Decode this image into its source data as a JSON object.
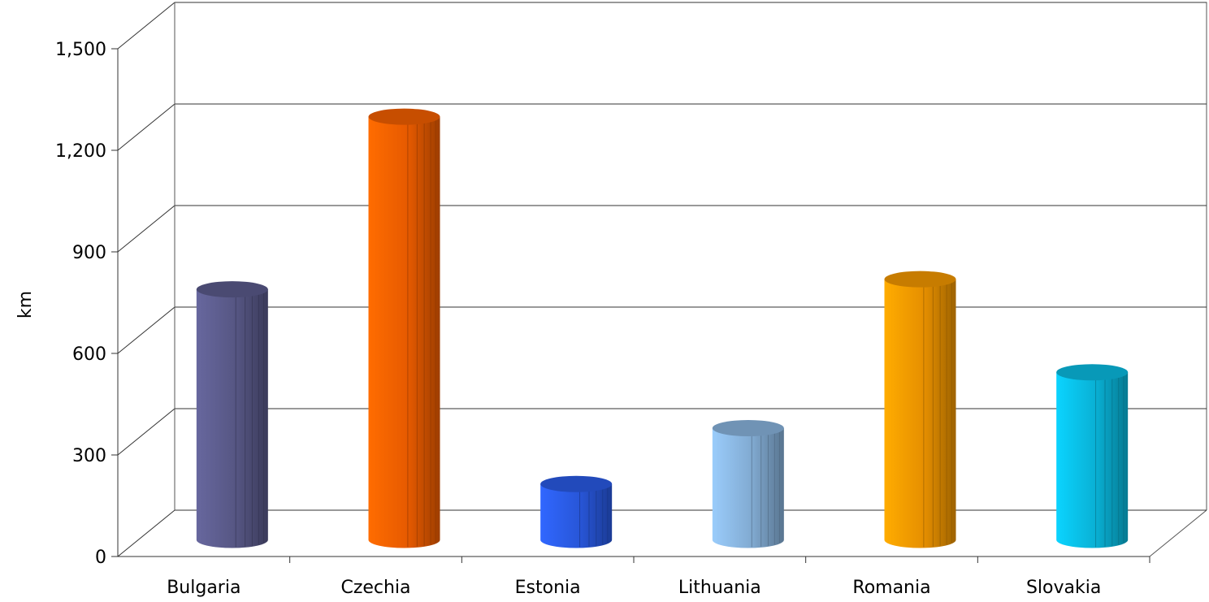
{
  "chart_data": {
    "type": "bar",
    "style": "3d-cylinder",
    "categories": [
      "Bulgaria",
      "Czechia",
      "Estonia",
      "Lithuania",
      "Romania",
      "Slovakia"
    ],
    "series": [
      {
        "values": [
          740,
          1250,
          165,
          330,
          770,
          495
        ]
      }
    ],
    "colors": [
      "#5f5f92",
      "#ff6400",
      "#2c5ff0",
      "#8fbde8",
      "#ff9f00",
      "#0ac4ec"
    ],
    "ylabel": "km",
    "xlabel": "",
    "yticks": [
      "0",
      "300",
      "600",
      "900",
      "1,200",
      "1,500"
    ],
    "ylim": [
      0,
      1500
    ],
    "grid": true,
    "legend": "none"
  }
}
